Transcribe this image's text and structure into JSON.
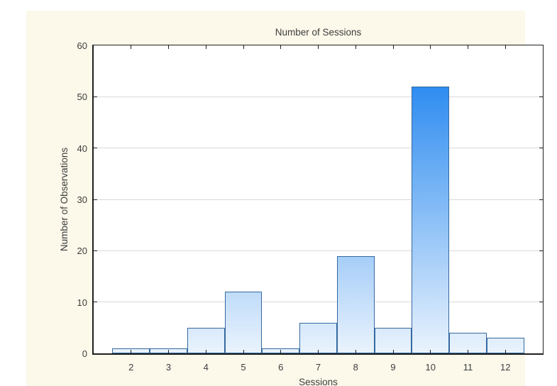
{
  "chart_data": {
    "type": "bar",
    "subtype": "histogram",
    "title": "Number of Sessions",
    "xlabel": "Sessions",
    "ylabel": "Number of Observations",
    "categories": [
      2,
      3,
      4,
      5,
      6,
      7,
      8,
      9,
      10,
      11,
      12
    ],
    "values": [
      1,
      1,
      5,
      12,
      1,
      6,
      19,
      5,
      52,
      4,
      3
    ],
    "xlim": [
      1,
      13
    ],
    "ylim": [
      0,
      60
    ],
    "ytick_step": 10,
    "yticks": [
      0,
      10,
      20,
      30,
      40,
      50,
      60
    ],
    "grid": "horizontal",
    "legend": "none",
    "colors": {
      "panel_background": "#fcf8ea",
      "plot_background": "#ffffff",
      "bar_gradient_top": "#117cee",
      "bar_gradient_bottom": "#eaf3fd",
      "bar_border": "#35699f",
      "gridline": "#d9d9d9",
      "axis_frame": "#1f1f1f",
      "text": "#3d3d3d"
    }
  }
}
